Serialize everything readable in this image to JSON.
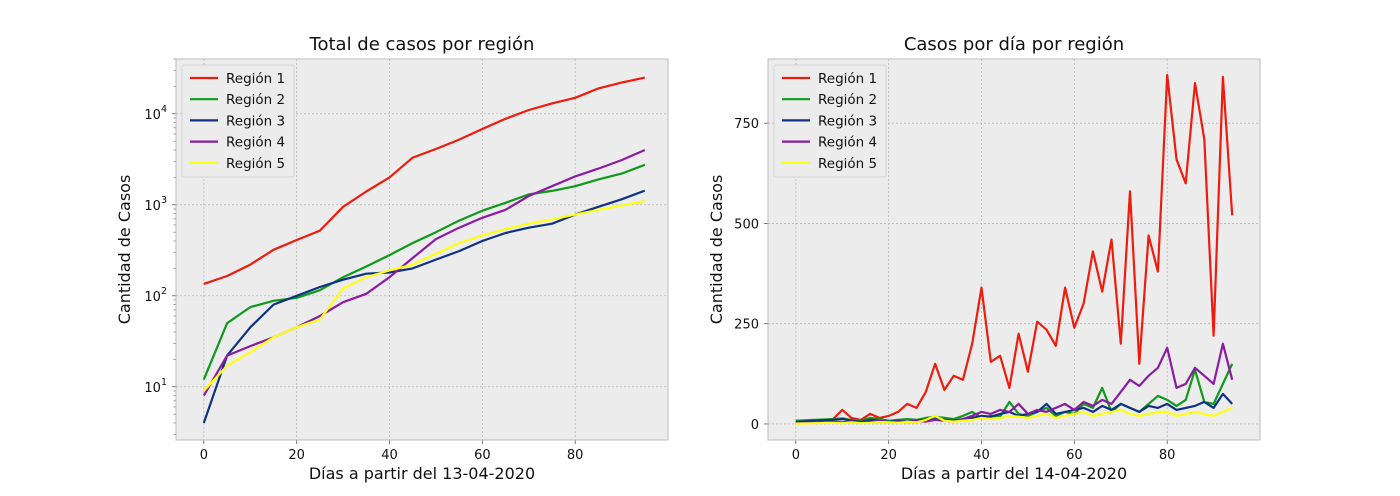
{
  "chart_data": [
    {
      "type": "line",
      "title": "Total de casos por región",
      "xlabel": "Días a partir del 13-04-2020",
      "ylabel": "Cantidad de Casos",
      "yscale": "log",
      "xlim": [
        -6,
        100
      ],
      "ylim": [
        2.6,
        40000
      ],
      "x_ticks": [
        0,
        20,
        40,
        60,
        80
      ],
      "y_ticks": [
        {
          "value": 10,
          "base": "10",
          "exp": "1"
        },
        {
          "value": 100,
          "base": "10",
          "exp": "2"
        },
        {
          "value": 1000,
          "base": "10",
          "exp": "3"
        },
        {
          "value": 10000,
          "base": "10",
          "exp": "4"
        }
      ],
      "grid": true,
      "legend_position": "top-left",
      "x": [
        0,
        5,
        10,
        15,
        20,
        25,
        30,
        35,
        40,
        45,
        50,
        55,
        60,
        65,
        70,
        75,
        80,
        85,
        90,
        95
      ],
      "series": [
        {
          "name": "Región 1",
          "color": "#ee1c0e",
          "values": [
            135,
            165,
            220,
            320,
            410,
            520,
            950,
            1400,
            2000,
            3300,
            4100,
            5200,
            6800,
            8800,
            11000,
            13000,
            15000,
            19000,
            22000,
            25000
          ]
        },
        {
          "name": "Región 2",
          "color": "#0f9a1c",
          "values": [
            12,
            50,
            75,
            88,
            95,
            115,
            160,
            210,
            280,
            380,
            500,
            670,
            860,
            1050,
            1300,
            1420,
            1600,
            1900,
            2200,
            2750
          ]
        },
        {
          "name": "Región 3",
          "color": "#0f3285",
          "values": [
            4,
            22,
            45,
            80,
            100,
            125,
            150,
            175,
            180,
            200,
            250,
            310,
            400,
            490,
            560,
            620,
            780,
            950,
            1150,
            1430
          ]
        },
        {
          "name": "Región 4",
          "color": "#8a1ca3",
          "values": [
            8,
            22,
            28,
            35,
            45,
            60,
            85,
            105,
            160,
            260,
            420,
            560,
            720,
            880,
            1250,
            1600,
            2050,
            2500,
            3100,
            4000
          ]
        },
        {
          "name": "Región 5",
          "color": "#ffff14",
          "values": [
            9,
            17,
            24,
            35,
            45,
            55,
            120,
            160,
            190,
            220,
            290,
            380,
            460,
            540,
            620,
            690,
            780,
            880,
            980,
            1100
          ]
        }
      ]
    },
    {
      "type": "line",
      "title": "Casos por día por región",
      "xlabel": "Días a partir del 14-04-2020",
      "ylabel": "Cantidad de Casos",
      "xlim": [
        -6,
        100
      ],
      "ylim": [
        -40,
        910
      ],
      "x_ticks": [
        0,
        20,
        40,
        60,
        80
      ],
      "y_ticks": [
        0,
        250,
        500,
        750
      ],
      "grid": true,
      "legend_position": "top-left",
      "x": [
        0,
        4,
        8,
        10,
        12,
        14,
        16,
        18,
        20,
        22,
        24,
        26,
        28,
        30,
        32,
        34,
        36,
        38,
        40,
        42,
        44,
        46,
        48,
        50,
        52,
        54,
        56,
        58,
        60,
        62,
        64,
        66,
        68,
        70,
        72,
        74,
        76,
        78,
        80,
        82,
        84,
        86,
        88,
        90,
        92,
        94
      ],
      "series": [
        {
          "name": "Región 1",
          "color": "#ee1c0e",
          "values": [
            5,
            8,
            12,
            35,
            15,
            10,
            25,
            15,
            20,
            30,
            50,
            40,
            80,
            150,
            85,
            120,
            110,
            200,
            340,
            155,
            170,
            90,
            225,
            130,
            255,
            235,
            195,
            340,
            240,
            300,
            430,
            330,
            460,
            200,
            580,
            150,
            470,
            380,
            870,
            660,
            600,
            850,
            710,
            220,
            865,
            520
          ]
        },
        {
          "name": "Región 2",
          "color": "#0f9a1c",
          "values": [
            8,
            10,
            12,
            14,
            10,
            8,
            15,
            12,
            8,
            10,
            12,
            10,
            15,
            18,
            15,
            12,
            20,
            30,
            15,
            20,
            18,
            55,
            25,
            20,
            30,
            40,
            20,
            30,
            25,
            50,
            40,
            90,
            30,
            50,
            40,
            30,
            50,
            70,
            60,
            45,
            60,
            135,
            55,
            50,
            100,
            150
          ]
        },
        {
          "name": "Región 3",
          "color": "#0f3285",
          "values": [
            5,
            8,
            10,
            12,
            8,
            5,
            10,
            8,
            5,
            8,
            5,
            8,
            10,
            12,
            10,
            8,
            12,
            15,
            20,
            18,
            25,
            30,
            20,
            25,
            30,
            50,
            25,
            30,
            35,
            40,
            30,
            45,
            35,
            50,
            40,
            30,
            45,
            40,
            50,
            35,
            40,
            45,
            55,
            40,
            75,
            50
          ]
        },
        {
          "name": "Región 4",
          "color": "#8a1ca3",
          "values": [
            2,
            3,
            5,
            4,
            6,
            3,
            5,
            8,
            4,
            6,
            5,
            8,
            6,
            10,
            8,
            6,
            12,
            20,
            30,
            25,
            35,
            30,
            50,
            25,
            35,
            30,
            40,
            50,
            35,
            55,
            45,
            60,
            50,
            80,
            110,
            95,
            120,
            140,
            190,
            90,
            100,
            140,
            120,
            100,
            200,
            110
          ]
        },
        {
          "name": "Región 5",
          "color": "#ffff14",
          "values": [
            1,
            2,
            3,
            2,
            4,
            2,
            3,
            5,
            4,
            3,
            5,
            4,
            10,
            20,
            8,
            6,
            8,
            10,
            15,
            12,
            15,
            20,
            18,
            15,
            20,
            25,
            15,
            20,
            25,
            30,
            20,
            25,
            30,
            35,
            25,
            20,
            25,
            30,
            30,
            20,
            25,
            30,
            25,
            20,
            30,
            40
          ]
        }
      ]
    }
  ]
}
